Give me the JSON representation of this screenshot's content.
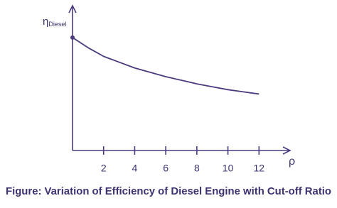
{
  "chart_data": {
    "type": "line",
    "caption": "Figure: Variation of Efficiency of Diesel Engine with Cut-off Ratio",
    "ylabel": {
      "symbol": "η",
      "subscript": "Diesel"
    },
    "xlabel": "ρ",
    "x": [
      0,
      1,
      2,
      3,
      4,
      5,
      6,
      7,
      8,
      9,
      10,
      11,
      12
    ],
    "values": [
      0.78,
      0.71,
      0.65,
      0.61,
      0.57,
      0.54,
      0.51,
      0.485,
      0.46,
      0.44,
      0.42,
      0.405,
      0.39
    ],
    "color": "#4b3a7d",
    "start_marker": true,
    "xlim": [
      0,
      14
    ],
    "xticks": [
      2,
      4,
      6,
      8,
      10,
      12
    ],
    "ylim": [
      0,
      1
    ]
  }
}
